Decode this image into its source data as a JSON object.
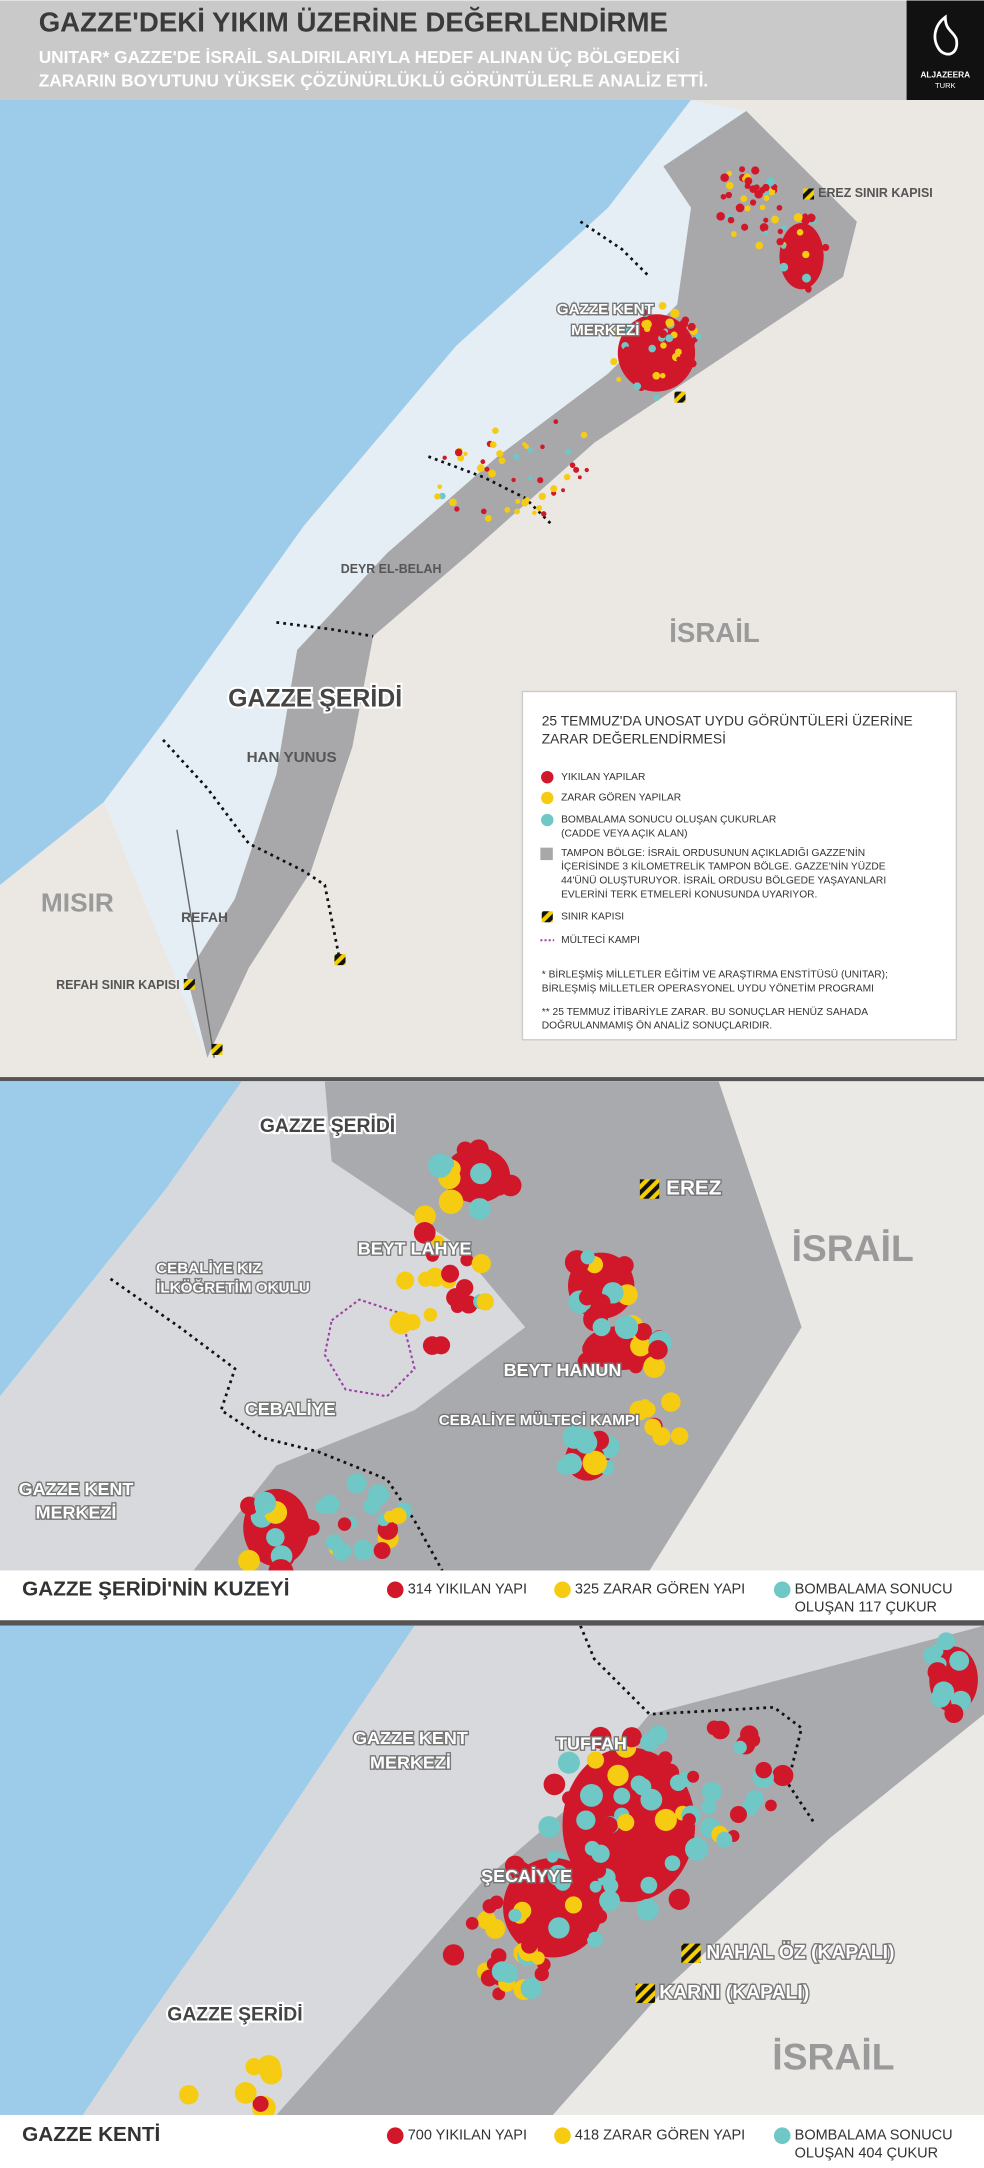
{
  "header": {
    "title": "GAZZE'DEKİ YIKIM ÜZERİNE DEĞERLENDİRME",
    "subtitle_lines": [
      "UNITAR* GAZZE'DE İSRAİL SALDIRILARIYLA HEDEF ALINAN ÜÇ BÖLGEDEKİ",
      "ZARARIN BOYUTUNU YÜKSEK ÇÖZÜNÜRLÜKLÜ GÖRÜNTÜLERLE ANALİZ ETTİ."
    ]
  },
  "logo": {
    "brand": "ALJAZEERA",
    "sub": "TURK"
  },
  "map_overview": {
    "labels": {
      "erez": "EREZ SINIR KAPISI",
      "gaza_city": [
        "GAZZE KENT",
        "MERKEZİ"
      ],
      "deir": "DEYR EL-BELAH",
      "israel": "İSRAİL",
      "strip": "GAZZE ŞERİDİ",
      "khan_yunis": "HAN YUNUS",
      "egypt": "MISIR",
      "rafah": "REFAH",
      "rafah_crossing": "REFAH SINIR KAPISI"
    }
  },
  "legend": {
    "title_lines": [
      "25 TEMMUZ'DA UNOSAT UYDU GÖRÜNTÜLERİ ÜZERİNE",
      "ZARAR DEĞERLENDİRMESİ"
    ],
    "items": {
      "destroyed": "YIKILAN YAPILAR",
      "damaged": "ZARAR GÖREN YAPILAR",
      "craters": [
        "BOMBALAMA SONUCU OLUŞAN ÇUKURLAR",
        "(CADDE VEYA AÇIK ALAN)"
      ],
      "buffer": [
        "TAMPON BÖLGE: İSRAİL ORDUSUNUN AÇIKLADIĞI GAZZE'NİN",
        "İÇERİSİNDE 3 KİLOMETRELİK TAMPON BÖLGE. GAZZE'NİN YÜZDE",
        "44'ÜNÜ OLUŞTURUYOR. İSRAİL ORDUSU BÖLGEDE YAŞAYANLARI",
        "EVLERİNİ TERK ETMELERİ KONUSUNDA UYARIYOR."
      ],
      "crossing": "SINIR KAPISI",
      "camp": "MÜLTECİ KAMPI"
    },
    "notes": [
      [
        "* BİRLEŞMİŞ MİLLETLER EĞİTİM VE ARAŞTIRMA ENSTİTÜSÜ (UNITAR);",
        "BİRLEŞMİŞ MİLLETLER OPERASYONEL UYDU YÖNETİM PROGRAMI"
      ],
      [
        "** 25 TEMMUZ İTİBARİYLE ZARAR. BU SONUÇLAR HENÜZ SAHADA",
        "DOĞRULANMAMIŞ ÖN ANALİZ SONUÇLARIDIR."
      ]
    ]
  },
  "map_north": {
    "labels": {
      "strip": "GAZZE ŞERİDİ",
      "erez": "EREZ",
      "israel": "İSRAİL",
      "beit_lahia": "BEYT LAHYE",
      "school": [
        "CEBALİYE KIZ",
        "İLKÖĞRETİM OKULU"
      ],
      "beit_hanoun": "BEYT HANUN",
      "jabalia": "CEBALİYE",
      "jabalia_camp": "CEBALİYE MÜLTECİ KAMPI",
      "gaza_city": [
        "GAZZE KENT",
        "MERKEZİ"
      ]
    },
    "caption": "GAZZE ŞERİDİ'NİN KUZEYİ",
    "stats": {
      "destroyed": "314 YIKILAN YAPI",
      "damaged": "325 ZARAR GÖREN YAPI",
      "craters": [
        "BOMBALAMA SONUCU",
        "OLUŞAN 117 ÇUKUR"
      ]
    }
  },
  "map_city": {
    "labels": {
      "gaza_city": [
        "GAZZE KENT",
        "MERKEZİ"
      ],
      "tuffah": "TUFFAH",
      "shujaiyya": "ŞECAİYYE",
      "nahal_oz": "NAHAL ÖZ (KAPALI)",
      "karni": "KARNI (KAPALI)",
      "strip": "GAZZE ŞERİDİ",
      "israel": "İSRAİL"
    },
    "caption": "GAZZE KENTİ",
    "stats": {
      "destroyed": "700 YIKILAN YAPI",
      "damaged": "418 ZARAR GÖREN YAPI",
      "craters": [
        "BOMBALAMA SONUCU",
        "OLUŞAN 404 ÇUKUR"
      ]
    }
  }
}
